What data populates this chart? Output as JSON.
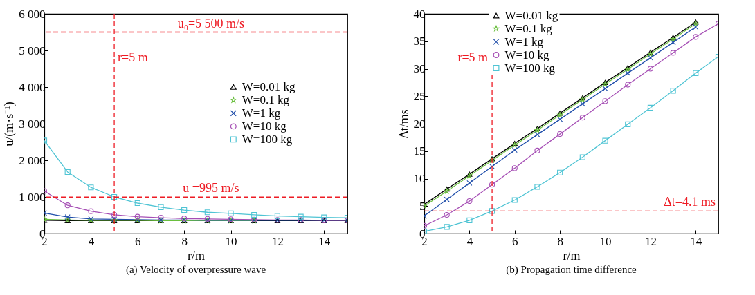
{
  "chart_data": [
    {
      "type": "line",
      "title": "(a) Velocity of overpressure wave",
      "xlabel": "r/m",
      "ylabel": "u/(m·s⁻¹)",
      "x": [
        2,
        3,
        4,
        5,
        6,
        7,
        8,
        9,
        10,
        11,
        12,
        13,
        14,
        15
      ],
      "xlim": [
        2,
        15
      ],
      "xticks": [
        2,
        4,
        6,
        8,
        10,
        12,
        14
      ],
      "ylim": [
        0,
        6000
      ],
      "yticks": [
        0,
        {
          "value": 1000,
          "label": "1 000"
        },
        {
          "value": 2000,
          "label": "2 000"
        },
        {
          "value": 3000,
          "label": "3 000"
        },
        {
          "value": 4000,
          "label": "4 000"
        },
        {
          "value": 5000,
          "label": "5 000"
        },
        {
          "value": 6000,
          "label": "6 000"
        }
      ],
      "grid": false,
      "legend": "right",
      "line_style": "solid",
      "series": [
        {
          "name": "W=0.01 kg",
          "color": "#000000",
          "marker": "triangle",
          "values": [
            360,
            350,
            350,
            350,
            350,
            350,
            350,
            350,
            350,
            350,
            350,
            350,
            350,
            350
          ]
        },
        {
          "name": "W=0.1 kg",
          "color": "#6abf3e",
          "marker": "star",
          "values": [
            390,
            370,
            360,
            360,
            360,
            350,
            350,
            350,
            350,
            350,
            null,
            null,
            null,
            null
          ]
        },
        {
          "name": "W=1 kg",
          "color": "#1f4eaa",
          "marker": "cross",
          "values": [
            560,
            450,
            400,
            390,
            380,
            370,
            370,
            360,
            360,
            360,
            360,
            360,
            360,
            360
          ]
        },
        {
          "name": "W=10 kg",
          "color": "#a64fb5",
          "marker": "circle",
          "values": [
            1160,
            770,
            610,
            510,
            460,
            430,
            410,
            400,
            390,
            380,
            370,
            370,
            360,
            360
          ]
        },
        {
          "name": "W=100 kg",
          "color": "#4fc4d4",
          "marker": "square",
          "values": [
            2540,
            1680,
            1260,
            1000,
            830,
            720,
            640,
            580,
            550,
            510,
            480,
            460,
            440,
            430
          ]
        }
      ],
      "ref_lines": [
        {
          "axis": "x",
          "value": 5,
          "label": "r=5 m",
          "color": "#ee1c25",
          "line_style": "dashed"
        },
        {
          "axis": "y",
          "value": 5500,
          "label": "u₀=5 500 m/s",
          "color": "#ee1c25",
          "line_style": "dashed"
        },
        {
          "axis": "y",
          "value": 995,
          "label": "u =995 m/s",
          "color": "#ee1c25",
          "line_style": "dashed"
        }
      ]
    },
    {
      "type": "line",
      "title": "(b) Propagation time difference",
      "xlabel": "r/m",
      "ylabel": "Δt/ms",
      "x": [
        2,
        3,
        4,
        5,
        6,
        7,
        8,
        9,
        10,
        11,
        12,
        13,
        14,
        15
      ],
      "xlim": [
        2,
        15
      ],
      "xticks": [
        2,
        4,
        6,
        8,
        10,
        12,
        14
      ],
      "ylim": [
        0,
        40
      ],
      "yticks": [
        0,
        5,
        10,
        15,
        20,
        25,
        30,
        35,
        40
      ],
      "grid": false,
      "legend": "top",
      "line_style": "solid",
      "series": [
        {
          "name": "W=0.01 kg",
          "color": "#000000",
          "marker": "triangle",
          "values": [
            5.3,
            8.1,
            10.8,
            13.6,
            16.4,
            19.1,
            21.9,
            24.7,
            27.5,
            30.2,
            33.0,
            35.7,
            38.5,
            null
          ]
        },
        {
          "name": "W=0.1 kg",
          "color": "#6abf3e",
          "marker": "star",
          "values": [
            5.0,
            7.7,
            10.5,
            13.3,
            16.1,
            18.8,
            21.6,
            24.4,
            27.2,
            29.9,
            32.7,
            35.4,
            38.2,
            null
          ]
        },
        {
          "name": "W=1 kg",
          "color": "#1f4eaa",
          "marker": "cross",
          "values": [
            3.2,
            6.2,
            9.2,
            12.2,
            15.2,
            18.0,
            20.8,
            23.6,
            26.4,
            29.2,
            32.0,
            34.8,
            37.6,
            null
          ]
        },
        {
          "name": "W=10 kg",
          "color": "#a64fb5",
          "marker": "circle",
          "values": [
            1.4,
            3.4,
            5.9,
            8.9,
            11.9,
            15.1,
            18.1,
            21.1,
            24.1,
            27.1,
            30.0,
            32.9,
            35.8,
            38.2
          ]
        },
        {
          "name": "W=100 kg",
          "color": "#4fc4d4",
          "marker": "square",
          "values": [
            0.4,
            1.2,
            2.4,
            4.1,
            6.1,
            8.5,
            11.1,
            13.9,
            16.9,
            19.9,
            22.9,
            26.0,
            29.2,
            32.2
          ]
        }
      ],
      "ref_lines": [
        {
          "axis": "x",
          "value": 5,
          "label": "r=5 m",
          "color": "#ee1c25",
          "line_style": "dashed"
        },
        {
          "axis": "y",
          "value": 4.1,
          "label": "Δt=4.1 ms",
          "color": "#ee1c25",
          "line_style": "dashed"
        }
      ]
    }
  ]
}
